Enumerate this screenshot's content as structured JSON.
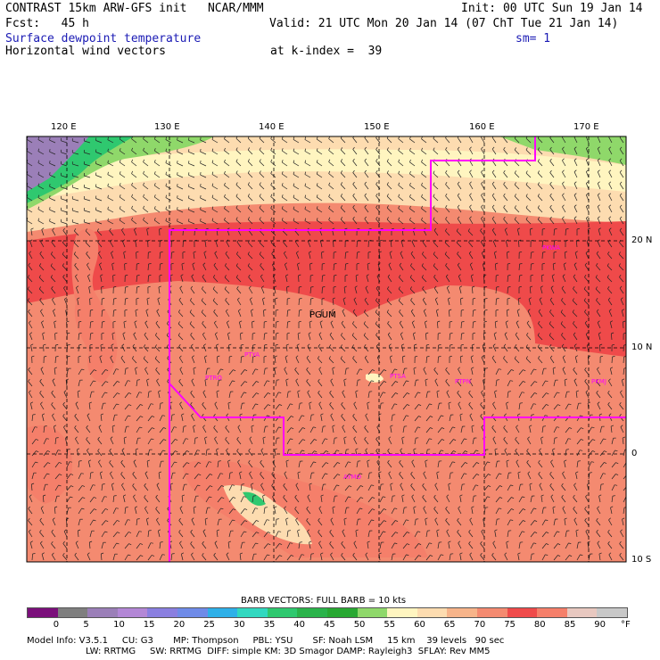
{
  "header": {
    "model_line": "CONTRAST 15km ARW-GFS init   NCAR/MMM",
    "init": "Init: 00 UTC Sun 19 Jan 14",
    "fcst": "Fcst:   45 h",
    "valid": "Valid: 21 UTC Mon 20 Jan 14 (07 ChT Tue 21 Jan 14)",
    "field": "Surface dewpoint temperature",
    "smooth": "sm= 1",
    "vectors": "Horizontal wind vectors",
    "kindex": "at k-index =  39"
  },
  "map": {
    "lon_labels": [
      "120 E",
      "130 E",
      "140 E",
      "150 E",
      "160 E",
      "170 E"
    ],
    "lat_labels": [
      "20 N",
      "10 N",
      "0",
      "10 S"
    ],
    "region_label": "PGUM",
    "stations": [
      "PTYA",
      "PTRO",
      "PTSA",
      "PTPN",
      "PKMJ",
      "PKWA",
      "AYMO"
    ]
  },
  "colorbar": {
    "title": "BARB VECTORS:  FULL BARB = 10 kts",
    "labels": [
      "0",
      "5",
      "10",
      "15",
      "20",
      "25",
      "30",
      "35",
      "40",
      "45",
      "50",
      "55",
      "60",
      "65",
      "70",
      "75",
      "80",
      "85",
      "90"
    ],
    "unit": "°F",
    "colors": [
      "#7b0f7b",
      "#7f7f7f",
      "#9b7fb8",
      "#b387d6",
      "#8a7fe0",
      "#6f8be8",
      "#2fb0e8",
      "#32d8c0",
      "#2fc86f",
      "#2ab34a",
      "#28a832",
      "#8fd86a",
      "#fff5c0",
      "#fddcb0",
      "#f7b48a",
      "#f48a70",
      "#ef4a4a",
      "#f57f6a",
      "#e8c8c0",
      "#c8c8c8"
    ]
  },
  "footer": {
    "line1": "Model Info: V3.5.1     CU: G3       MP: Thompson     PBL: YSU       SF: Noah LSM     15 km    39 levels   90 sec",
    "line2": "LW: RRTMG     SW: RRTMG  DIFF: simple KM: 3D Smagor DAMP: Rayleigh3  SFLAY: Rev MM5"
  }
}
